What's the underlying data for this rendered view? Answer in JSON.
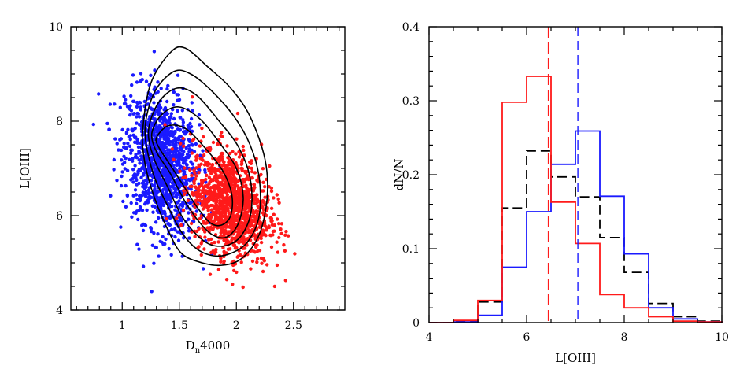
{
  "chart_data": [
    {
      "type": "scatter",
      "xlabel": "D",
      "xlabel_sub": "n",
      "xlabel_suffix": "4000",
      "ylabel": "L[OIII]",
      "xlim": [
        0.55,
        2.95
      ],
      "ylim": [
        4,
        10
      ],
      "xticks": [
        "1",
        "1.5",
        "2",
        "2.5"
      ],
      "xtick_values": [
        1,
        1.5,
        2,
        2.5
      ],
      "yticks": [
        "4",
        "6",
        "8",
        "10"
      ],
      "ytick_values": [
        4,
        6,
        8,
        10
      ],
      "series": [
        {
          "name": "blue",
          "color": "#1a1aff",
          "center": [
            1.35,
            7.1
          ],
          "spread": [
            0.16,
            0.7
          ],
          "count": 1300
        },
        {
          "name": "red",
          "color": "#ff1a1a",
          "center": [
            1.95,
            6.25
          ],
          "spread": [
            0.17,
            0.55
          ],
          "count": 1300
        }
      ],
      "contours": [
        {
          "level": 1,
          "points": [
            [
              1.18,
              7.8
            ],
            [
              1.25,
              8.8
            ],
            [
              1.42,
              9.45
            ],
            [
              1.55,
              9.55
            ],
            [
              1.75,
              9.15
            ],
            [
              1.95,
              8.7
            ],
            [
              2.12,
              8.1
            ],
            [
              2.25,
              7.2
            ],
            [
              2.27,
              6.4
            ],
            [
              2.2,
              5.6
            ],
            [
              2.05,
              5.1
            ],
            [
              1.88,
              4.95
            ],
            [
              1.7,
              5.0
            ],
            [
              1.52,
              5.2
            ],
            [
              1.4,
              5.7
            ],
            [
              1.28,
              6.4
            ],
            [
              1.2,
              7.1
            ]
          ]
        },
        {
          "level": 2,
          "points": [
            [
              1.2,
              7.8
            ],
            [
              1.28,
              8.6
            ],
            [
              1.45,
              9.05
            ],
            [
              1.6,
              9.0
            ],
            [
              1.78,
              8.65
            ],
            [
              1.98,
              8.1
            ],
            [
              2.12,
              7.5
            ],
            [
              2.2,
              6.8
            ],
            [
              2.2,
              6.0
            ],
            [
              2.1,
              5.45
            ],
            [
              1.95,
              5.2
            ],
            [
              1.8,
              5.15
            ],
            [
              1.65,
              5.3
            ],
            [
              1.52,
              5.65
            ],
            [
              1.4,
              6.2
            ],
            [
              1.27,
              6.9
            ]
          ]
        },
        {
          "level": 3,
          "points": [
            [
              1.23,
              7.8
            ],
            [
              1.32,
              8.4
            ],
            [
              1.48,
              8.7
            ],
            [
              1.65,
              8.55
            ],
            [
              1.85,
              8.0
            ],
            [
              2.02,
              7.45
            ],
            [
              2.12,
              6.8
            ],
            [
              2.13,
              6.1
            ],
            [
              2.05,
              5.6
            ],
            [
              1.93,
              5.38
            ],
            [
              1.78,
              5.38
            ],
            [
              1.65,
              5.6
            ],
            [
              1.52,
              6.0
            ],
            [
              1.4,
              6.6
            ],
            [
              1.28,
              7.2
            ]
          ]
        },
        {
          "level": 4,
          "points": [
            [
              1.26,
              7.75
            ],
            [
              1.35,
              8.15
            ],
            [
              1.5,
              8.3
            ],
            [
              1.68,
              8.05
            ],
            [
              1.85,
              7.55
            ],
            [
              2.0,
              7.0
            ],
            [
              2.06,
              6.4
            ],
            [
              2.02,
              5.85
            ],
            [
              1.92,
              5.55
            ],
            [
              1.8,
              5.58
            ],
            [
              1.68,
              5.85
            ],
            [
              1.55,
              6.3
            ],
            [
              1.42,
              6.9
            ],
            [
              1.3,
              7.35
            ]
          ]
        },
        {
          "level": 5,
          "points": [
            [
              1.3,
              7.65
            ],
            [
              1.4,
              7.9
            ],
            [
              1.55,
              7.85
            ],
            [
              1.72,
              7.45
            ],
            [
              1.88,
              6.95
            ],
            [
              1.96,
              6.45
            ],
            [
              1.95,
              6.0
            ],
            [
              1.87,
              5.8
            ],
            [
              1.77,
              5.85
            ],
            [
              1.65,
              6.2
            ],
            [
              1.52,
              6.7
            ],
            [
              1.4,
              7.15
            ],
            [
              1.32,
              7.45
            ]
          ]
        }
      ]
    },
    {
      "type": "step",
      "xlabel": "L[OIII]",
      "ylabel": "dN/N",
      "xlim": [
        4,
        10
      ],
      "ylim": [
        0,
        0.4
      ],
      "xticks": [
        "4",
        "6",
        "8",
        "10"
      ],
      "xtick_values": [
        4,
        6,
        8,
        10
      ],
      "yticks": [
        "0",
        "0.1",
        "0.2",
        "0.3",
        "0.4"
      ],
      "ytick_values": [
        0,
        0.1,
        0.2,
        0.3,
        0.4
      ],
      "bin_edges": [
        4,
        4.5,
        5,
        5.5,
        6,
        6.5,
        7,
        7.5,
        8,
        8.5,
        9,
        9.5,
        10
      ],
      "series": [
        {
          "name": "red",
          "color": "#ff1a1a",
          "dash": "solid",
          "values": [
            0,
            0.003,
            0.03,
            0.298,
            0.333,
            0.163,
            0.107,
            0.038,
            0.02,
            0.008,
            0.002,
            0.001
          ]
        },
        {
          "name": "blue",
          "color": "#1a1aff",
          "dash": "solid",
          "values": [
            0,
            0.001,
            0.01,
            0.075,
            0.15,
            0.214,
            0.259,
            0.171,
            0.093,
            0.02,
            0.005,
            0.001
          ]
        },
        {
          "name": "all",
          "color": "#000000",
          "dash": "dashed",
          "values": [
            0,
            0.002,
            0.028,
            0.155,
            0.232,
            0.197,
            0.17,
            0.115,
            0.068,
            0.026,
            0.008,
            0.002
          ]
        }
      ],
      "vlines": [
        {
          "name": "red-median",
          "x": 6.45,
          "color": "#ff1a1a",
          "dash": "long"
        },
        {
          "name": "blue-median",
          "x": 7.05,
          "color": "#1a1aff",
          "dash": "long"
        }
      ]
    }
  ]
}
